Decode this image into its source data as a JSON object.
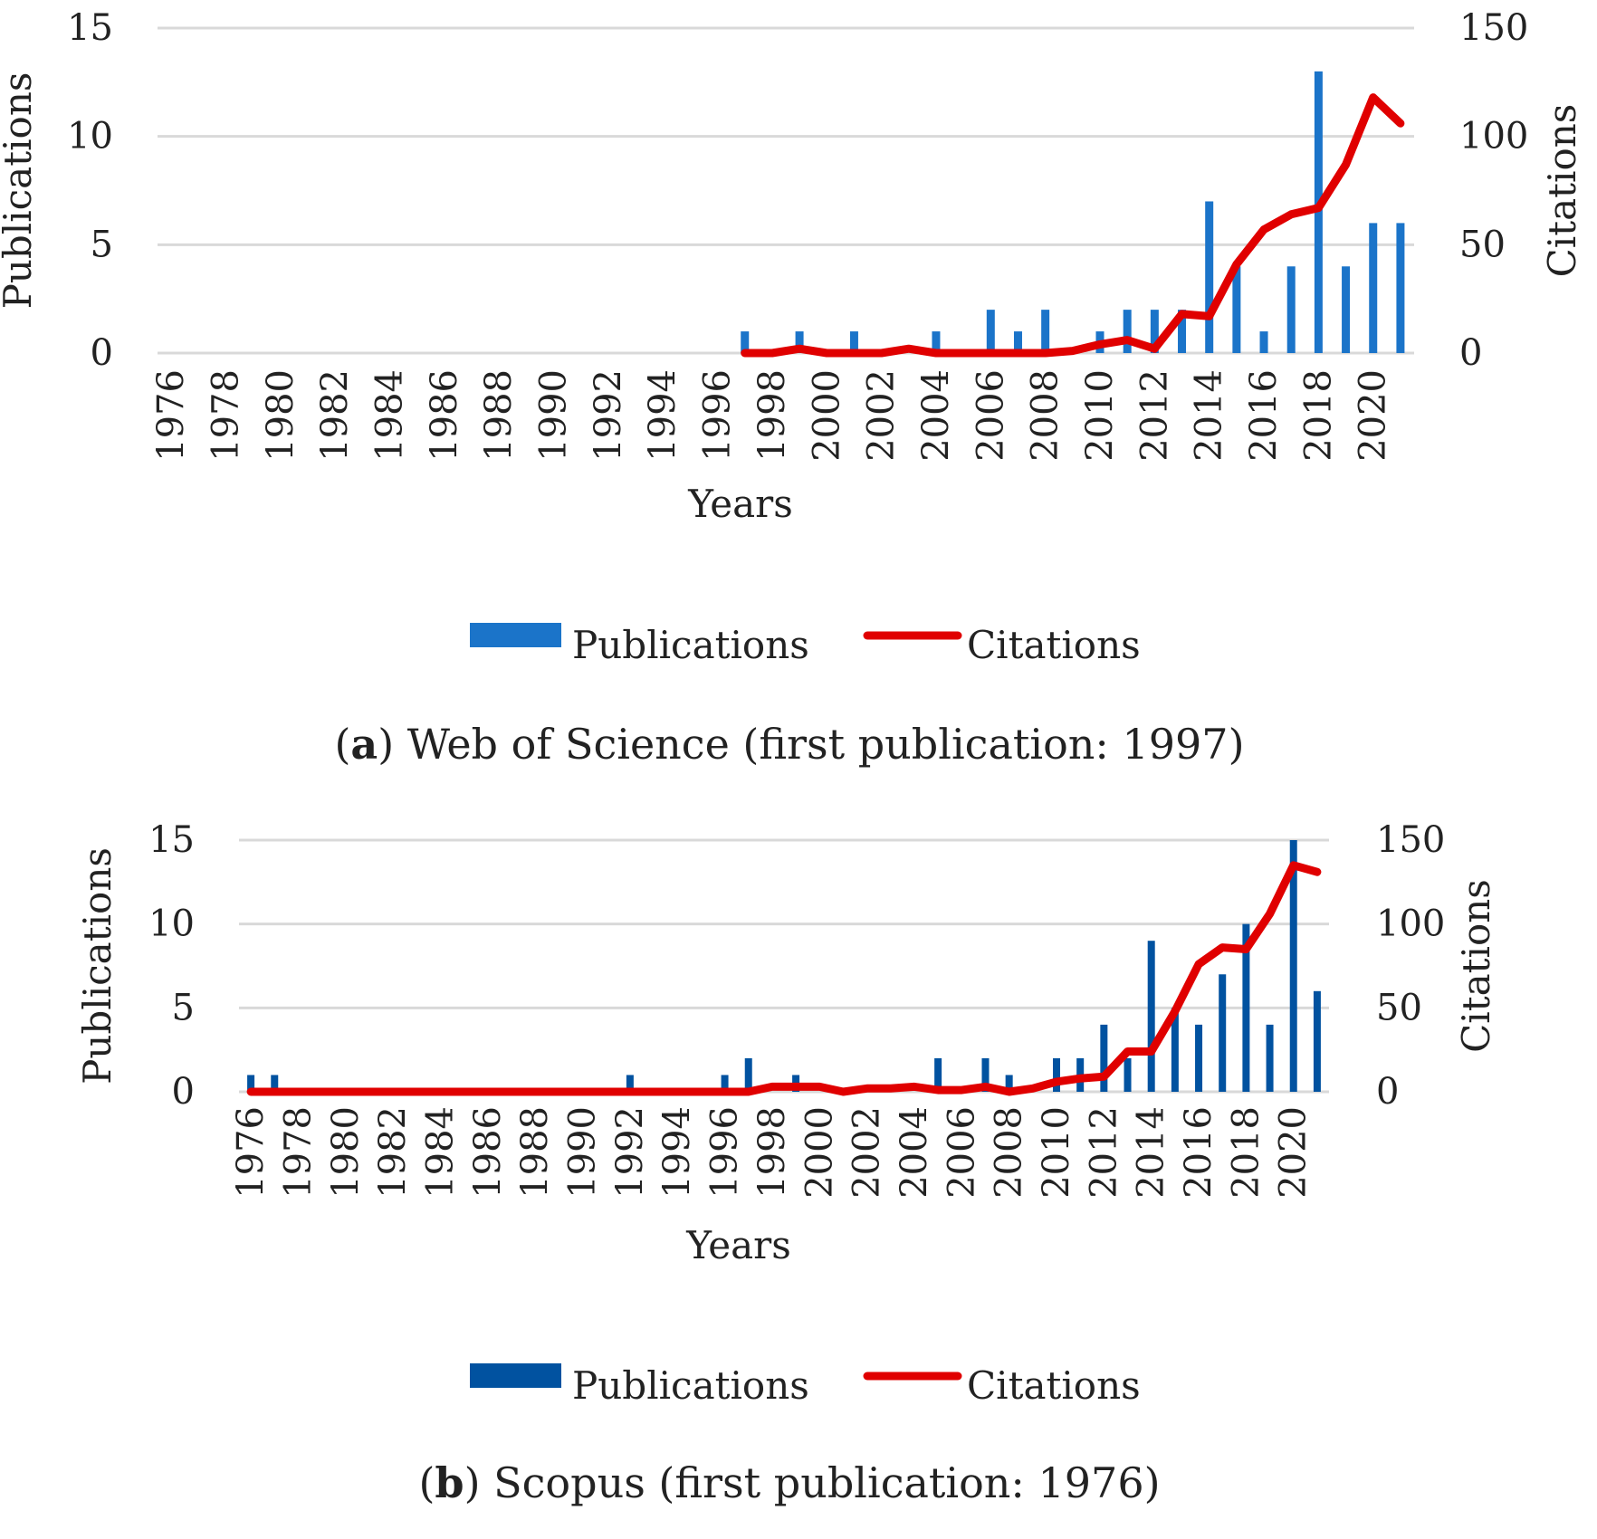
{
  "chart_data": [
    {
      "type": "bar+line",
      "caption_letter": "a",
      "caption_text": ") Web of Science (first publication: 1997)",
      "caption_open": "(",
      "xlabel": "Years",
      "ylabel_left": "Publications",
      "ylabel_right": "Citations",
      "ylim_left": [
        0,
        15
      ],
      "ylim_right": [
        0,
        150
      ],
      "yticks_left": [
        "0",
        "5",
        "10",
        "15"
      ],
      "yticks_right": [
        "0",
        "50",
        "100",
        "150"
      ],
      "grid": true,
      "legend_position": "bottom",
      "colors": {
        "bar": "#1b74c9",
        "line": "#e00000"
      },
      "series": [
        {
          "name": "Publications",
          "type": "bar",
          "values": [
            0,
            0,
            0,
            0,
            0,
            0,
            0,
            0,
            0,
            0,
            0,
            0,
            0,
            0,
            0,
            0,
            0,
            0,
            0,
            0,
            0,
            1,
            0,
            1,
            0,
            1,
            0,
            0,
            1,
            0,
            2,
            1,
            2,
            0,
            1,
            2,
            2,
            2,
            7,
            4,
            1,
            4,
            13,
            4,
            6,
            6
          ]
        },
        {
          "name": "Citations",
          "type": "line",
          "start_year": 1997,
          "values": [
            0,
            0,
            2,
            0,
            0,
            0,
            2,
            0,
            0,
            0,
            0,
            0,
            1,
            4,
            6,
            2,
            18,
            17,
            41,
            57,
            64,
            67,
            87,
            118,
            106
          ]
        }
      ]
    },
    {
      "type": "bar+line",
      "caption_letter": "b",
      "caption_text": ") Scopus (first publication: 1976)",
      "caption_open": "(",
      "xlabel": "Years",
      "ylabel_left": "Publications",
      "ylabel_right": "Citations",
      "ylim_left": [
        0,
        15
      ],
      "ylim_right": [
        0,
        150
      ],
      "yticks_left": [
        "0",
        "5",
        "10",
        "15"
      ],
      "yticks_right": [
        "0",
        "50",
        "100",
        "150"
      ],
      "grid": true,
      "legend_position": "bottom",
      "colors": {
        "bar": "#0152a0",
        "line": "#e00000"
      },
      "series": [
        {
          "name": "Publications",
          "type": "bar",
          "values": [
            1,
            1,
            0,
            0,
            0,
            0,
            0,
            0,
            0,
            0,
            0,
            0,
            0,
            0,
            0,
            0,
            1,
            0,
            0,
            0,
            1,
            2,
            0,
            1,
            0,
            0,
            0,
            0,
            0,
            2,
            0,
            2,
            1,
            0,
            2,
            2,
            4,
            2,
            9,
            5,
            4,
            7,
            10,
            4,
            15,
            6
          ]
        },
        {
          "name": "Citations",
          "type": "line",
          "start_year": 1976,
          "values": [
            0,
            0,
            0,
            0,
            0,
            0,
            0,
            0,
            0,
            0,
            0,
            0,
            0,
            0,
            0,
            0,
            0,
            0,
            0,
            0,
            0,
            0,
            3,
            3,
            3,
            0,
            2,
            2,
            3,
            1,
            1,
            3,
            0,
            2,
            6,
            8,
            9,
            24,
            24,
            48,
            76,
            86,
            85,
            106,
            135,
            131
          ]
        }
      ]
    }
  ],
  "years": [
    "1976",
    "1977",
    "1978",
    "1979",
    "1980",
    "1981",
    "1982",
    "1983",
    "1984",
    "1985",
    "1986",
    "1987",
    "1988",
    "1989",
    "1990",
    "1991",
    "1992",
    "1993",
    "1994",
    "1995",
    "1996",
    "1997",
    "1998",
    "1999",
    "2000",
    "2001",
    "2002",
    "2003",
    "2004",
    "2005",
    "2006",
    "2007",
    "2008",
    "2009",
    "2010",
    "2011",
    "2012",
    "2013",
    "2014",
    "2015",
    "2016",
    "2017",
    "2018",
    "2019",
    "2020",
    "2021"
  ]
}
